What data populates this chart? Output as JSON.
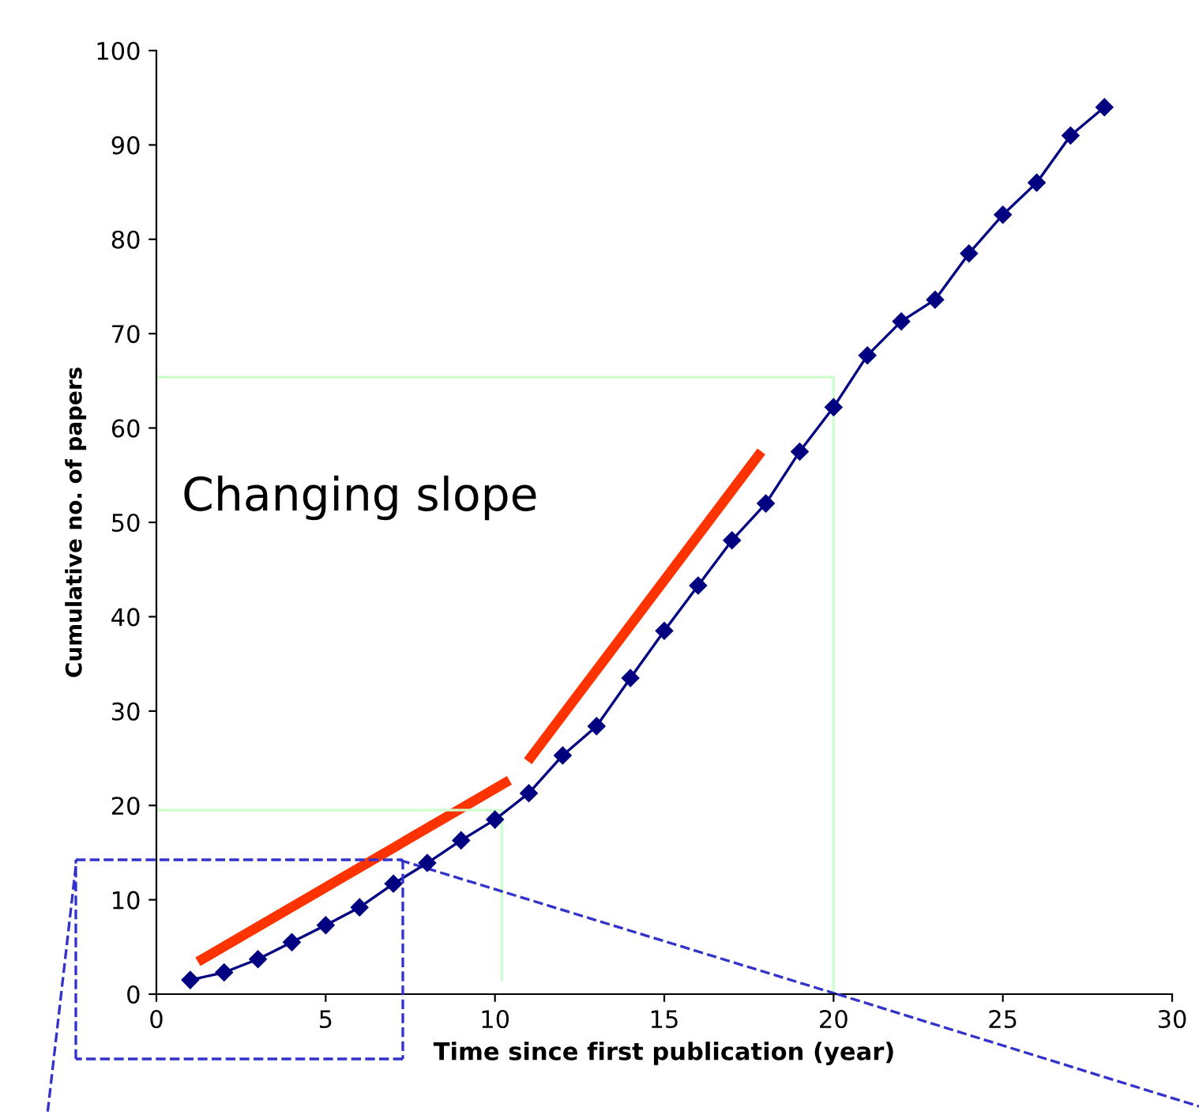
{
  "chart_data": {
    "type": "line",
    "xlabel": "Time since first publication (year)",
    "ylabel": "Cumulative no. of papers",
    "xlim": [
      0,
      30
    ],
    "xticks": [
      0,
      5,
      10,
      15,
      20,
      25,
      30
    ],
    "ylim": [
      0,
      100
    ],
    "yticks": [
      0,
      10,
      20,
      30,
      40,
      50,
      60,
      70,
      80,
      90,
      100
    ],
    "grid": false,
    "marker": "diamond",
    "line_style": "solid",
    "annotations": [
      "Changing slope"
    ],
    "series": [
      {
        "color": "#000080",
        "x": [
          1,
          2,
          3,
          4,
          5,
          6,
          7,
          8,
          9,
          10,
          11,
          12,
          13,
          14,
          15,
          16,
          17,
          18,
          19,
          20,
          21,
          22,
          23,
          24,
          25,
          26,
          27,
          28
        ],
        "values": [
          1.5,
          2.3,
          3.7,
          5.5,
          7.3,
          9.2,
          11.7,
          13.9,
          16.3,
          18.5,
          21.3,
          25.3,
          28.4,
          33.5,
          38.5,
          43.3,
          48.1,
          52.0,
          57.5,
          62.2,
          67.7,
          71.3,
          73.6,
          78.5,
          82.6,
          86.0,
          91.0,
          94.0
        ]
      },
      {
        "type": "line",
        "marker": "none",
        "color": "#ff3300",
        "x": [
          1.35,
          10.3
        ],
        "values": [
          3.7,
          22.4
        ]
      },
      {
        "type": "line",
        "marker": "none",
        "color": "#ff3300",
        "x": [
          11.06,
          17.78
        ],
        "values": [
          25.1,
          57.1
        ]
      },
      {
        "type": "line",
        "marker": "none",
        "color": "#ccffcc",
        "x": [
          0,
          10.2,
          10.2
        ],
        "values": [
          19.5,
          19.5,
          1.5
        ]
      },
      {
        "type": "line",
        "marker": "none",
        "color": "#ccffcc",
        "x": [
          0,
          20,
          20
        ],
        "values": [
          65.4,
          65.4,
          0
        ]
      },
      {
        "type": "line",
        "marker": "none",
        "line_style": "dashed",
        "color": "#3333cc",
        "x": [
          7.2,
          20.1
        ],
        "values": [
          14.2,
          0
        ]
      }
    ]
  }
}
